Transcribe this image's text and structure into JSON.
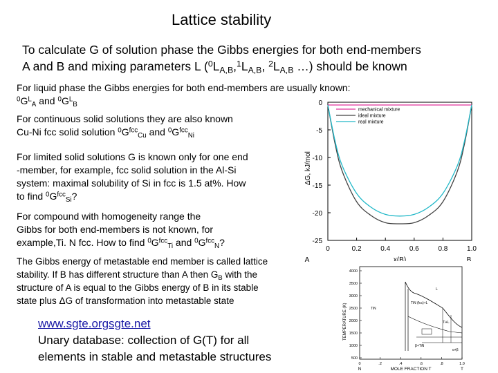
{
  "title": "Lattice stability",
  "intro": {
    "line1": "To calculate G of solution phase the Gibbs energies for both end-members",
    "line2_pre": "A and B and mixing parameters L (",
    "l0": "0",
    "l0_sub": "A,B",
    "l1": "1",
    "l1_sub": "A,B",
    "l2": "2",
    "l2_sub": "A,B",
    "line2_post": " …) should be known",
    "L": "L",
    "comma": ","
  },
  "liquid": {
    "line1": "For liquid phase the Gibbs energies for both end-members are usually known:",
    "sup0": "0",
    "G": "G",
    "supL": "L",
    "subA": "A",
    "and": " and ",
    "subB": "B"
  },
  "continuous": {
    "line1": "For continuous solid solutions they are also known",
    "line2_pre": "Cu-Ni fcc solid solution ",
    "sup0": "0",
    "G": "G",
    "supfcc": "fcc",
    "subCu": "Cu",
    "and": " and ",
    "subNi": "Ni"
  },
  "limited": {
    "line1": "For limited solid solutions G is known only for one end",
    "line2": "-member, for example, fcc solid solution in the Al-Si",
    "line3": "system: maximal solubility of Si in fcc is 1.5 at%. How",
    "line4_pre": "to find ",
    "sup0": "0",
    "G": "G",
    "supfcc": "fcc",
    "subSi": "Si",
    "q": "?"
  },
  "compound": {
    "line1": "For compound with homogeneity range the",
    "line2": "Gibbs for both end-members is not known, for",
    "line3_pre": "example,Ti. N fcc. How to find ",
    "sup0": "0",
    "G": "G",
    "supfcc": "fcc",
    "subTi": "Ti",
    "and": " and ",
    "subN": "N",
    "q": "?"
  },
  "metastable": {
    "line1": "The Gibbs energy of metastable end member is called lattice",
    "line2_pre": "stability. If B has different structure than A then G",
    "subB": "B",
    "line2_post": " with the",
    "line3": "structure of A is equal to the Gibbs energy of B in its stable",
    "line4_pre": "state plus ",
    "delta": "ΔG",
    "line4_post": " of transformation into metastable state"
  },
  "footer": {
    "link": "www.sgte.orgsgte.net",
    "line2": "Unary database: collection of G(T) for all",
    "line3": "elements in stable and metastable structures"
  },
  "chart_data": {
    "type": "line",
    "xlabel": "x(B)",
    "ylabel": "ΔG, kJ/mol",
    "xlim": [
      0,
      1
    ],
    "ylim": [
      -25,
      0
    ],
    "x_ticks": [
      "0",
      "0.2",
      "0.4",
      "0.6",
      "0.8",
      "1.0"
    ],
    "y_ticks": [
      "0",
      "-5",
      "-10",
      "-15",
      "-20",
      "-25"
    ],
    "end_labels": {
      "left": "A",
      "right": "B"
    },
    "legend_position": "top-right",
    "series": [
      {
        "name": "mechanical mixture",
        "color": "#e0309a",
        "x": [
          0,
          1
        ],
        "y": [
          -0.5,
          -0.5
        ]
      },
      {
        "name": "ideal mixture",
        "color": "#404040",
        "x": [
          0,
          0.05,
          0.1,
          0.2,
          0.3,
          0.4,
          0.5,
          0.6,
          0.7,
          0.8,
          0.9,
          0.95,
          1.0
        ],
        "y": [
          -0.5,
          -7.5,
          -12.5,
          -18.0,
          -20.5,
          -21.8,
          -22.0,
          -21.8,
          -20.5,
          -18.0,
          -12.5,
          -7.5,
          -0.5
        ]
      },
      {
        "name": "real mixture",
        "color": "#20b8c8",
        "x": [
          0,
          0.05,
          0.1,
          0.2,
          0.3,
          0.4,
          0.5,
          0.6,
          0.7,
          0.8,
          0.9,
          0.95,
          1.0
        ],
        "y": [
          -0.5,
          -7.0,
          -11.5,
          -16.5,
          -19.0,
          -20.3,
          -20.6,
          -20.3,
          -19.0,
          -16.5,
          -11.5,
          -7.0,
          -0.5
        ]
      }
    ]
  },
  "phase_diagram": {
    "ylabel": "TEMPERATURE (K)",
    "xlabel": "MOLE FRACTION T",
    "y_ticks": [
      "4000",
      "3500",
      "3000",
      "2500",
      "2000",
      "1500",
      "1000",
      "500"
    ],
    "x_ticks": [
      "0",
      ".2",
      ".4",
      ".6",
      ".8",
      "1.0"
    ],
    "end_labels": {
      "left": "N",
      "right": "T"
    },
    "region_labels": [
      "L",
      "TiN",
      "TiN (fcc)+L",
      "Ti+L",
      "β+TiN",
      "α+β"
    ]
  }
}
